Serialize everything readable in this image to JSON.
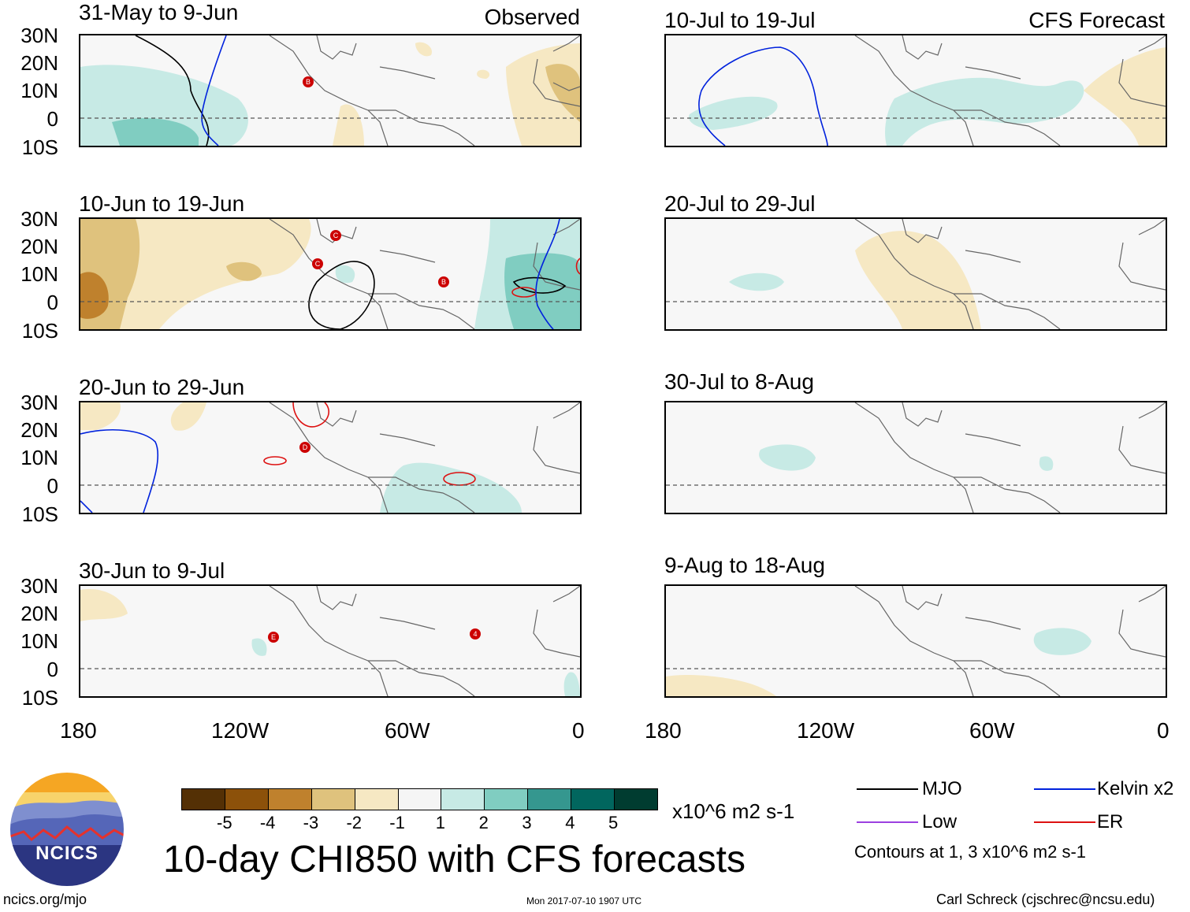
{
  "colors": {
    "map_bg": "#f7f7f7",
    "coast": "#666666",
    "mjo": "#000000",
    "kelvin": "#0022dd",
    "low": "#9b40e0",
    "er": "#dd1111",
    "storm": "#cc0000"
  },
  "panels": [
    {
      "title": "31-May to 9-Jun",
      "corner": "Observed"
    },
    {
      "title": "10-Jun to 19-Jun",
      "corner": ""
    },
    {
      "title": "20-Jun to 29-Jun",
      "corner": ""
    },
    {
      "title": "30-Jun to 9-Jul",
      "corner": ""
    },
    {
      "title": "10-Jul to 19-Jul",
      "corner": "CFS Forecast"
    },
    {
      "title": "20-Jul to 29-Jul",
      "corner": ""
    },
    {
      "title": "30-Jul to 8-Aug",
      "corner": ""
    },
    {
      "title": "9-Aug to 18-Aug",
      "corner": ""
    }
  ],
  "lat_labels": [
    "30N",
    "20N",
    "10N",
    "0",
    "10S"
  ],
  "lon_labels": [
    "180",
    "120W",
    "60W",
    "0"
  ],
  "storm_markers": {
    "p0": "B",
    "p1a": "C",
    "p1b": "C",
    "p1c": "B",
    "p2": "D",
    "p3a": "E",
    "p3b": "4"
  },
  "colorbar": {
    "colors": [
      "#543005",
      "#8c510a",
      "#bf812d",
      "#dfc27d",
      "#f6e8c3",
      "#f5f5f5",
      "#c7eae5",
      "#80cdc1",
      "#35978f",
      "#01665e",
      "#003c30"
    ],
    "labels": [
      "-5",
      "-4",
      "-3",
      "-2",
      "-1",
      "1",
      "2",
      "3",
      "4",
      "5"
    ],
    "units": "x10^6 m2 s-1"
  },
  "main_title": "10-day CHI850 with CFS forecasts",
  "legend": {
    "items": [
      {
        "label": "MJO",
        "color": "#000000"
      },
      {
        "label": "Kelvin x2",
        "color": "#0022dd"
      },
      {
        "label": "Low",
        "color": "#9b40e0"
      },
      {
        "label": "ER",
        "color": "#dd1111"
      }
    ],
    "note": "Contours at 1, 3 x10^6 m2 s-1"
  },
  "logo_text": "NCICS",
  "footer": {
    "left": "ncics.org/mjo",
    "center": "Mon 2017-07-10 1907 UTC",
    "right": "Carl Schreck (cjschrec@ncsu.edu)"
  }
}
